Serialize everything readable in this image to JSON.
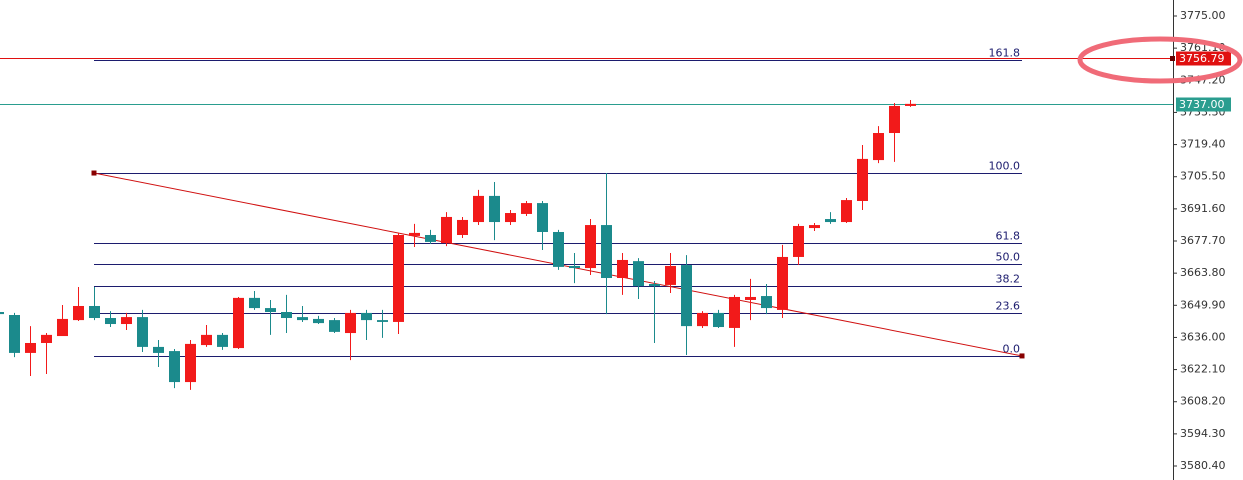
{
  "chart_data": {
    "type": "candlestick",
    "open": [
      3647.0,
      3645.7,
      3629.3,
      3633.6,
      3636.6,
      3643.5,
      3649.6,
      3644.4,
      3641.8,
      3644.8,
      3631.9,
      3630.1,
      3616.7,
      3632.7,
      3637.1,
      3631.4,
      3653.1,
      3648.7,
      3647.0,
      3644.8,
      3644.0,
      3643.5,
      3637.9,
      3646.6,
      3643.5,
      3642.7,
      3679.9,
      3680.3,
      3676.8,
      3680.3,
      3685.9,
      3697.2,
      3685.9,
      3689.4,
      3694.1,
      3681.6,
      3666.9,
      3666.0,
      3684.6,
      3661.7,
      3669.0,
      3659.1,
      3658.7,
      3667.3,
      3640.9,
      3646.6,
      3640.1,
      3652.2,
      3653.9,
      3647.9,
      3670.8,
      3683.3,
      3687.2,
      3685.9,
      3695.0,
      3712.7,
      3724.4,
      3736.1
    ],
    "high": [
      3647.9,
      3646.6,
      3640.9,
      3637.9,
      3650.0,
      3657.8,
      3657.8,
      3647.4,
      3646.6,
      3647.9,
      3634.9,
      3631.0,
      3634.9,
      3641.4,
      3637.9,
      3653.5,
      3656.1,
      3652.2,
      3654.4,
      3649.6,
      3645.3,
      3644.4,
      3647.9,
      3647.9,
      3647.9,
      3681.2,
      3685.1,
      3682.5,
      3690.2,
      3688.1,
      3699.8,
      3703.2,
      3691.1,
      3695.0,
      3695.0,
      3682.5,
      3672.5,
      3687.2,
      3707.1,
      3672.5,
      3670.3,
      3660.4,
      3672.5,
      3671.6,
      3647.4,
      3647.9,
      3654.4,
      3661.3,
      3659.1,
      3676.0,
      3685.1,
      3685.5,
      3690.2,
      3696.3,
      3719.2,
      3727.4,
      3737.4,
      3738.7
    ],
    "low": [
      3645.3,
      3627.5,
      3619.3,
      3620.2,
      3636.6,
      3643.1,
      3643.5,
      3640.5,
      3639.2,
      3629.7,
      3623.2,
      3614.1,
      3613.3,
      3631.9,
      3630.6,
      3631.0,
      3647.9,
      3637.1,
      3637.9,
      3642.7,
      3641.8,
      3637.9,
      3626.2,
      3634.9,
      3635.8,
      3637.5,
      3675.1,
      3676.4,
      3675.5,
      3679.0,
      3684.6,
      3678.1,
      3684.6,
      3688.5,
      3673.8,
      3665.2,
      3659.5,
      3663.0,
      3646.1,
      3654.4,
      3652.6,
      3633.6,
      3655.2,
      3628.4,
      3640.1,
      3640.1,
      3631.9,
      3643.5,
      3646.1,
      3644.4,
      3667.3,
      3682.0,
      3685.1,
      3685.5,
      3691.1,
      3711.4,
      3711.9,
      3735.7
    ],
    "close": [
      3646.1,
      3629.3,
      3633.6,
      3637.1,
      3644.0,
      3649.6,
      3644.4,
      3641.8,
      3644.8,
      3631.9,
      3629.3,
      3616.7,
      3633.2,
      3637.1,
      3631.9,
      3653.1,
      3648.7,
      3647.0,
      3644.4,
      3643.5,
      3642.2,
      3638.4,
      3646.6,
      3643.5,
      3642.7,
      3680.3,
      3681.2,
      3677.3,
      3688.1,
      3686.8,
      3697.2,
      3685.9,
      3689.8,
      3694.1,
      3681.6,
      3666.5,
      3666.0,
      3684.6,
      3661.7,
      3669.5,
      3658.2,
      3658.2,
      3666.9,
      3640.9,
      3646.6,
      3640.5,
      3653.5,
      3653.5,
      3648.7,
      3670.8,
      3684.2,
      3684.6,
      3685.9,
      3695.4,
      3713.2,
      3724.4,
      3736.1,
      3737.0
    ],
    "up_color": "#f21a1a",
    "down_color": "#1b8a8c",
    "ylim": [
      3574.35,
      3781.92
    ],
    "yticks": [
      {
        "value": 3775,
        "label": "3775.00"
      },
      {
        "value": 3761.1,
        "label": "3761.10"
      },
      {
        "value": 3747.2,
        "label": "3747.20"
      },
      {
        "value": 3733.3,
        "label": "3733.30"
      },
      {
        "value": 3719.4,
        "label": "3719.40"
      },
      {
        "value": 3705.5,
        "label": "3705.50"
      },
      {
        "value": 3691.6,
        "label": "3691.60"
      },
      {
        "value": 3677.7,
        "label": "3677.70"
      },
      {
        "value": 3663.8,
        "label": "3663.80"
      },
      {
        "value": 3649.9,
        "label": "3649.90"
      },
      {
        "value": 3636,
        "label": "3636.00"
      },
      {
        "value": 3622.1,
        "label": "3622.10"
      },
      {
        "value": 3608.2,
        "label": "3608.20"
      },
      {
        "value": 3594.3,
        "label": "3594.30"
      },
      {
        "value": 3580.4,
        "label": "3580.40"
      }
    ],
    "fib_anchor": [
      3707.1,
      3628.0
    ],
    "fib_ratios": [
      161.8,
      {
        "value": 100,
        "label": "100.0"
      },
      61.8,
      {
        "value": 50,
        "label": "50.0"
      },
      38.2,
      23.6,
      {
        "value": 0,
        "label": "0.0"
      }
    ],
    "fib_color": "#1c1c6e",
    "trend_line": {
      "x": [
        6,
        64
      ],
      "y": [
        3707.1,
        3628.0
      ],
      "color": "#d01010"
    },
    "price_labels": [
      3756.79,
      {
        "value": 3737,
        "label": "3737.00"
      }
    ],
    "price_label_colors": [
      "#e01010",
      "#2a9d8f"
    ]
  }
}
